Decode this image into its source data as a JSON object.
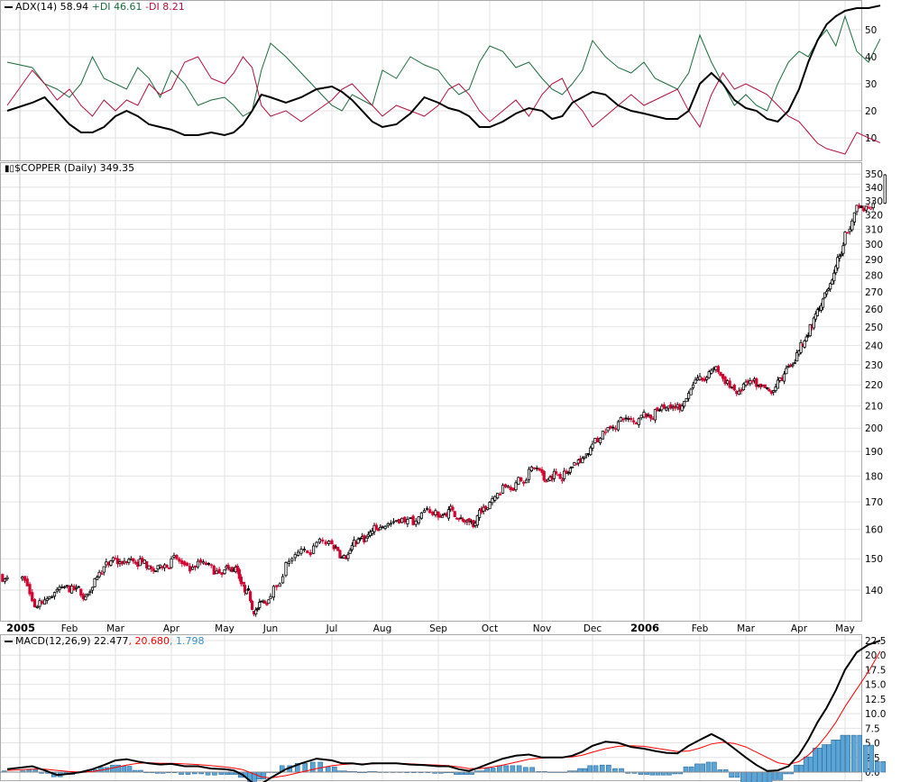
{
  "chart_data": [
    {
      "type": "line",
      "title": "ADX(14)",
      "legend": [
        {
          "label": "ADX(14)",
          "value": "58.94",
          "color": "#000000"
        },
        {
          "label": "+DI",
          "value": "46.61",
          "color": "#1a6b3c"
        },
        {
          "label": "-DI",
          "value": "8.21",
          "color": "#b0103c"
        }
      ],
      "ylim": [
        0,
        60
      ],
      "yticks": [
        "50",
        "40",
        "30",
        "20",
        "10"
      ],
      "adx": [
        20,
        23,
        25,
        20,
        15,
        12,
        12,
        14,
        18,
        20,
        18,
        15,
        14,
        13,
        11,
        11,
        12,
        11,
        12,
        15,
        20,
        26,
        25,
        23,
        25,
        28,
        29,
        27,
        24,
        20,
        16,
        14,
        15,
        19,
        25,
        23,
        21,
        20,
        18,
        14,
        14,
        16,
        19,
        21,
        20,
        17,
        18,
        23,
        25,
        27,
        26,
        22,
        20,
        19,
        18,
        17,
        17,
        20,
        30,
        34,
        30,
        24,
        21,
        20,
        17,
        16,
        20,
        28,
        38,
        46,
        52,
        55,
        57,
        58,
        58,
        58.94
      ],
      "plus_di": [
        38,
        36,
        30,
        28,
        25,
        30,
        40,
        32,
        30,
        28,
        36,
        32,
        25,
        35,
        30,
        22,
        24,
        25,
        22,
        18,
        20,
        35,
        45,
        40,
        34,
        28,
        22,
        20,
        26,
        24,
        22,
        35,
        32,
        40,
        37,
        35,
        30,
        26,
        28,
        38,
        44,
        42,
        36,
        38,
        32,
        28,
        26,
        30,
        35,
        46,
        40,
        36,
        34,
        38,
        32,
        30,
        28,
        34,
        48,
        38,
        30,
        22,
        26,
        22,
        20,
        30,
        38,
        42,
        40,
        46,
        50,
        44,
        55,
        42,
        38,
        46.61
      ],
      "minus_di": [
        22,
        35,
        30,
        24,
        28,
        22,
        18,
        24,
        20,
        24,
        22,
        30,
        26,
        28,
        38,
        40,
        32,
        30,
        34,
        40,
        36,
        22,
        18,
        20,
        16,
        20,
        24,
        28,
        30,
        26,
        22,
        18,
        22,
        20,
        18,
        22,
        28,
        30,
        26,
        20,
        16,
        20,
        24,
        18,
        26,
        30,
        32,
        24,
        20,
        14,
        18,
        22,
        26,
        22,
        24,
        26,
        28,
        20,
        14,
        26,
        34,
        28,
        30,
        28,
        26,
        22,
        18,
        16,
        12,
        8,
        6,
        5,
        4,
        12,
        10,
        8.21
      ]
    },
    {
      "type": "candlestick",
      "title": "$COPPER (Daily)",
      "last": "349.35",
      "scale": "log",
      "ylim": [
        130,
        355
      ],
      "yticks": [
        "350",
        "340",
        "330",
        "320",
        "310",
        "300",
        "290",
        "280",
        "270",
        "260",
        "250",
        "240",
        "230",
        "220",
        "210",
        "200",
        "190",
        "180",
        "170",
        "160",
        "150",
        "140"
      ],
      "weekly_close": [
        143,
        135,
        138,
        141,
        140,
        138,
        144,
        148,
        149,
        150,
        149,
        146,
        148,
        150,
        146,
        149,
        146,
        147,
        146,
        140,
        134,
        136,
        141,
        150,
        152,
        156,
        154,
        150,
        155,
        157,
        160,
        162,
        164,
        163,
        166,
        165,
        167,
        163,
        161,
        168,
        172,
        176,
        178,
        183,
        178,
        181,
        181,
        185,
        189,
        194,
        200,
        204,
        202,
        206,
        208,
        209,
        210,
        220,
        222,
        229,
        222,
        217,
        222,
        219,
        216,
        222,
        230,
        240,
        250,
        262,
        275,
        292,
        310,
        325,
        328,
        349.35
      ],
      "xticks": [
        "2005",
        "Feb",
        "Mar",
        "Apr",
        "May",
        "Jun",
        "Jul",
        "Aug",
        "Sep",
        "Oct",
        "Nov",
        "Dec",
        "2006",
        "Feb",
        "Mar",
        "Apr",
        "May"
      ]
    },
    {
      "type": "line",
      "title": "MACD(12,26,9)",
      "legend": [
        {
          "label": "MACD",
          "value": "22.477",
          "color": "#000000"
        },
        {
          "label": "Signal",
          "value": "20.680",
          "color": "#ff0000"
        },
        {
          "label": "Histogram",
          "value": "1.798",
          "color": "#3a8fc8"
        }
      ],
      "ylim": [
        -1.5,
        23
      ],
      "yticks": [
        "22.5",
        "20.0",
        "17.5",
        "15.0",
        "12.5",
        "10.0",
        "7.5",
        "5.0",
        "2.5",
        "0.0"
      ],
      "macd": [
        0.5,
        1.0,
        0.3,
        -0.5,
        -0.3,
        0,
        0.5,
        1.2,
        2.0,
        2.2,
        1.8,
        1.5,
        1.3,
        1.4,
        1.0,
        1.0,
        0.6,
        0.5,
        0.3,
        -0.5,
        -1.8,
        -2.0,
        -1.0,
        0.5,
        1.5,
        2.3,
        2.0,
        1.5,
        1.5,
        1.3,
        1.5,
        1.5,
        1.5,
        1.3,
        1.2,
        1.0,
        1.0,
        0.5,
        0.2,
        0.8,
        1.5,
        2.3,
        2.8,
        3.0,
        2.5,
        2.5,
        2.5,
        2.8,
        3.5,
        4.5,
        5.2,
        5.0,
        4.3,
        4.0,
        3.6,
        3.3,
        3.2,
        4.5,
        5.5,
        6.5,
        5.5,
        4.0,
        2.5,
        1.2,
        0.2,
        0.3,
        1.0,
        3.0,
        5.5,
        8.5,
        11,
        14,
        17.5,
        20.5,
        21.8,
        22.477
      ],
      "signal": [
        0.3,
        0.5,
        0.5,
        0.3,
        0.1,
        0.0,
        0.1,
        0.4,
        0.8,
        1.2,
        1.5,
        1.6,
        1.5,
        1.5,
        1.4,
        1.3,
        1.1,
        0.9,
        0.7,
        0.4,
        -0.2,
        -0.8,
        -1.0,
        -0.6,
        0.0,
        0.6,
        1.1,
        1.3,
        1.4,
        1.4,
        1.4,
        1.5,
        1.5,
        1.4,
        1.3,
        1.2,
        1.1,
        0.9,
        0.6,
        0.6,
        0.8,
        1.2,
        1.7,
        2.2,
        2.4,
        2.5,
        2.5,
        2.6,
        2.9,
        3.4,
        4.0,
        4.4,
        4.5,
        4.4,
        4.1,
        3.8,
        3.5,
        3.6,
        4.1,
        4.8,
        5.1,
        4.9,
        4.3,
        3.4,
        2.5,
        1.6,
        1.3,
        1.8,
        2.9,
        4.4,
        6.3,
        8.5,
        11.2,
        14.2,
        17.2,
        20.68
      ]
    }
  ]
}
